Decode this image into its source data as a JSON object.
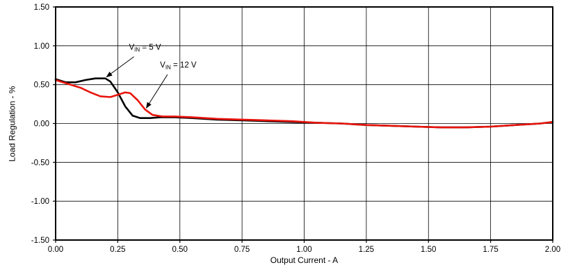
{
  "chart_data": {
    "type": "line",
    "title": "",
    "xlabel": "Output Current - A",
    "ylabel": "Load Regulation - %",
    "xlim": [
      0,
      2
    ],
    "ylim": [
      -1.5,
      1.5
    ],
    "grid": true,
    "x_ticks": [
      0,
      0.25,
      0.5,
      0.75,
      1.0,
      1.25,
      1.5,
      1.75,
      2.0
    ],
    "x_tick_labels": [
      "0.00",
      "0.25",
      "0.50",
      "0.75",
      "1.00",
      "1.25",
      "1.50",
      "1.75",
      "2.00"
    ],
    "y_ticks": [
      -1.5,
      -1.0,
      -0.5,
      0,
      0.5,
      1.0,
      1.5
    ],
    "y_tick_labels": [
      "-1.50",
      "-1.00",
      "-0.50",
      "0.00",
      "0.50",
      "1.00",
      "1.50"
    ],
    "series": [
      {
        "id": "vin-5v",
        "name": "VIN = 5 V",
        "color": "#000000",
        "points": [
          [
            0.0,
            0.57
          ],
          [
            0.04,
            0.53
          ],
          [
            0.08,
            0.53
          ],
          [
            0.12,
            0.56
          ],
          [
            0.16,
            0.58
          ],
          [
            0.2,
            0.58
          ],
          [
            0.22,
            0.54
          ],
          [
            0.25,
            0.4
          ],
          [
            0.28,
            0.22
          ],
          [
            0.31,
            0.1
          ],
          [
            0.34,
            0.07
          ],
          [
            0.38,
            0.07
          ],
          [
            0.42,
            0.08
          ],
          [
            0.48,
            0.08
          ],
          [
            0.55,
            0.07
          ],
          [
            0.65,
            0.05
          ],
          [
            0.75,
            0.04
          ],
          [
            0.85,
            0.03
          ],
          [
            0.95,
            0.02
          ],
          [
            1.05,
            0.01
          ],
          [
            1.15,
            0.0
          ],
          [
            1.25,
            -0.02
          ],
          [
            1.35,
            -0.03
          ],
          [
            1.45,
            -0.04
          ],
          [
            1.55,
            -0.05
          ],
          [
            1.65,
            -0.05
          ],
          [
            1.75,
            -0.04
          ],
          [
            1.85,
            -0.02
          ],
          [
            1.95,
            0.0
          ],
          [
            2.0,
            0.02
          ]
        ]
      },
      {
        "id": "vin-12v",
        "name": "VIN = 12 V",
        "color": "#e8140c",
        "points": [
          [
            0.0,
            0.56
          ],
          [
            0.05,
            0.51
          ],
          [
            0.1,
            0.46
          ],
          [
            0.14,
            0.4
          ],
          [
            0.18,
            0.35
          ],
          [
            0.22,
            0.34
          ],
          [
            0.25,
            0.37
          ],
          [
            0.28,
            0.4
          ],
          [
            0.3,
            0.39
          ],
          [
            0.33,
            0.3
          ],
          [
            0.36,
            0.18
          ],
          [
            0.39,
            0.11
          ],
          [
            0.43,
            0.09
          ],
          [
            0.48,
            0.09
          ],
          [
            0.55,
            0.08
          ],
          [
            0.65,
            0.06
          ],
          [
            0.75,
            0.05
          ],
          [
            0.85,
            0.04
          ],
          [
            0.95,
            0.03
          ],
          [
            1.05,
            0.01
          ],
          [
            1.15,
            0.0
          ],
          [
            1.25,
            -0.02
          ],
          [
            1.35,
            -0.03
          ],
          [
            1.45,
            -0.04
          ],
          [
            1.55,
            -0.05
          ],
          [
            1.65,
            -0.05
          ],
          [
            1.75,
            -0.04
          ],
          [
            1.85,
            -0.02
          ],
          [
            1.95,
            0.0
          ],
          [
            2.0,
            0.02
          ]
        ]
      }
    ],
    "annotations": [
      {
        "label": {
          "prefix": "V",
          "sub": "IN",
          "suffix": " = 5 V"
        },
        "text_x": 0.295,
        "text_y": 0.95,
        "arrow_from": [
          0.315,
          0.86
        ],
        "arrow_to": [
          0.205,
          0.6
        ]
      },
      {
        "label": {
          "prefix": "V",
          "sub": "IN",
          "suffix": " = 12 V"
        },
        "text_x": 0.42,
        "text_y": 0.72,
        "arrow_from": [
          0.45,
          0.63
        ],
        "arrow_to": [
          0.365,
          0.2
        ]
      }
    ]
  }
}
